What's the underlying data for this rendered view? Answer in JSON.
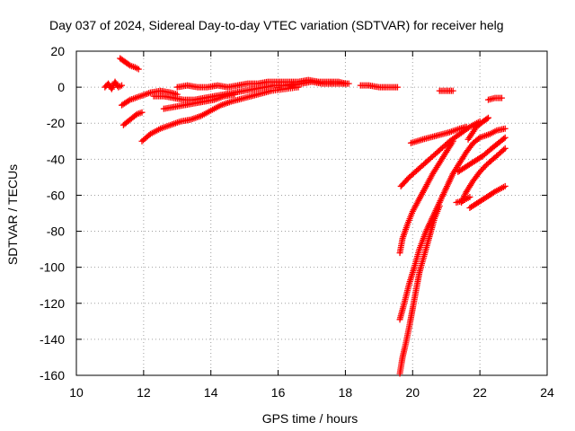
{
  "chart_data": {
    "type": "scatter",
    "title": "Day 037 of 2024, Sidereal Day-to-day VTEC variation (SDTVAR) for receiver helg",
    "xlabel": "GPS time / hours",
    "ylabel": "SDTVAR / TECUs",
    "xlim": [
      10,
      24
    ],
    "ylim": [
      -160,
      20
    ],
    "xticks": [
      10,
      12,
      14,
      16,
      18,
      20,
      22,
      24
    ],
    "yticks": [
      20,
      0,
      -20,
      -40,
      -60,
      -80,
      -100,
      -120,
      -140,
      -160
    ],
    "grid": true,
    "marker": "+",
    "color": "#ff0000",
    "series": [
      {
        "points": [
          [
            10.85,
            0
          ],
          [
            10.95,
            2
          ],
          [
            11.05,
            -1
          ],
          [
            11.15,
            3
          ],
          [
            11.25,
            0
          ],
          [
            11.35,
            1
          ]
        ]
      },
      {
        "points": [
          [
            11.3,
            16
          ],
          [
            11.45,
            14
          ],
          [
            11.6,
            12
          ],
          [
            11.75,
            11
          ],
          [
            11.85,
            10
          ]
        ]
      },
      {
        "points": [
          [
            11.35,
            -10
          ],
          [
            11.6,
            -7
          ],
          [
            11.9,
            -5
          ],
          [
            12.2,
            -3
          ],
          [
            12.5,
            -2
          ],
          [
            12.8,
            -3
          ],
          [
            13.0,
            -4
          ]
        ]
      },
      {
        "points": [
          [
            11.4,
            -21
          ],
          [
            11.6,
            -18
          ],
          [
            11.8,
            -15
          ],
          [
            11.95,
            -14
          ]
        ]
      },
      {
        "points": [
          [
            11.95,
            -30
          ],
          [
            12.2,
            -26
          ],
          [
            12.5,
            -23
          ],
          [
            12.8,
            -21
          ],
          [
            13.1,
            -19
          ],
          [
            13.4,
            -18
          ],
          [
            13.7,
            -16
          ],
          [
            14.0,
            -13
          ],
          [
            14.3,
            -10
          ],
          [
            14.6,
            -8
          ],
          [
            15.0,
            -6
          ],
          [
            15.4,
            -4
          ],
          [
            15.8,
            -2
          ],
          [
            16.2,
            -1
          ],
          [
            16.6,
            0
          ]
        ]
      },
      {
        "points": [
          [
            12.3,
            -5
          ],
          [
            12.6,
            -5
          ],
          [
            12.9,
            -6
          ],
          [
            13.2,
            -7
          ],
          [
            13.5,
            -7
          ],
          [
            13.8,
            -6
          ],
          [
            14.1,
            -5
          ],
          [
            14.4,
            -4
          ],
          [
            14.7,
            -3
          ],
          [
            15.0,
            -2
          ],
          [
            15.3,
            -1
          ],
          [
            15.6,
            0
          ],
          [
            15.9,
            1
          ],
          [
            16.2,
            1
          ],
          [
            16.5,
            2
          ]
        ]
      },
      {
        "points": [
          [
            12.6,
            -12
          ],
          [
            12.9,
            -11
          ],
          [
            13.2,
            -10
          ],
          [
            13.5,
            -9
          ],
          [
            13.8,
            -8
          ],
          [
            14.1,
            -7
          ],
          [
            14.4,
            -5
          ],
          [
            14.7,
            -4
          ]
        ]
      },
      {
        "points": [
          [
            13.0,
            0
          ],
          [
            13.3,
            1
          ],
          [
            13.6,
            0
          ],
          [
            13.9,
            0
          ],
          [
            14.2,
            1
          ],
          [
            14.5,
            0
          ],
          [
            14.8,
            1
          ],
          [
            15.1,
            2
          ],
          [
            15.4,
            2
          ],
          [
            15.7,
            3
          ],
          [
            16.0,
            3
          ],
          [
            16.3,
            3
          ],
          [
            16.6,
            3
          ],
          [
            16.9,
            4
          ],
          [
            17.2,
            3
          ],
          [
            17.5,
            3
          ],
          [
            17.8,
            3
          ],
          [
            18.0,
            2
          ]
        ]
      },
      {
        "points": [
          [
            16.4,
            1
          ],
          [
            16.7,
            2
          ],
          [
            17.0,
            3
          ],
          [
            17.3,
            2
          ],
          [
            17.6,
            2
          ],
          [
            17.9,
            2
          ],
          [
            18.1,
            2
          ]
        ]
      },
      {
        "points": [
          [
            18.45,
            1
          ],
          [
            18.7,
            1
          ],
          [
            19.0,
            0
          ],
          [
            19.3,
            0
          ],
          [
            19.55,
            0
          ]
        ]
      },
      {
        "points": [
          [
            20.8,
            -2
          ],
          [
            21.0,
            -2
          ],
          [
            21.2,
            -2
          ]
        ]
      },
      {
        "points": [
          [
            22.25,
            -7
          ],
          [
            22.45,
            -6
          ],
          [
            22.65,
            -6
          ]
        ]
      },
      {
        "points": [
          [
            19.65,
            -55
          ],
          [
            19.9,
            -50
          ],
          [
            20.2,
            -45
          ],
          [
            20.5,
            -40
          ],
          [
            20.8,
            -35
          ],
          [
            21.1,
            -30
          ],
          [
            21.4,
            -26
          ],
          [
            21.7,
            -22
          ],
          [
            22.0,
            -19
          ]
        ]
      },
      {
        "points": [
          [
            19.95,
            -31
          ],
          [
            20.3,
            -29
          ],
          [
            20.7,
            -27
          ],
          [
            21.1,
            -25
          ],
          [
            21.4,
            -23
          ],
          [
            21.6,
            -22
          ]
        ]
      },
      {
        "points": [
          [
            19.62,
            -92
          ],
          [
            19.7,
            -84
          ],
          [
            19.85,
            -76
          ],
          [
            20.0,
            -69
          ],
          [
            20.2,
            -62
          ],
          [
            20.4,
            -55
          ],
          [
            20.6,
            -48
          ],
          [
            20.8,
            -42
          ],
          [
            21.0,
            -36
          ],
          [
            21.2,
            -30
          ]
        ]
      },
      {
        "points": [
          [
            19.62,
            -129
          ],
          [
            19.75,
            -120
          ],
          [
            19.9,
            -109
          ],
          [
            20.05,
            -100
          ],
          [
            20.2,
            -90
          ],
          [
            20.4,
            -80
          ],
          [
            20.6,
            -72
          ],
          [
            20.8,
            -64
          ],
          [
            21.0,
            -56
          ],
          [
            21.2,
            -48
          ],
          [
            21.4,
            -42
          ],
          [
            21.6,
            -36
          ],
          [
            21.8,
            -31
          ],
          [
            22.0,
            -28
          ],
          [
            22.3,
            -26
          ],
          [
            22.5,
            -24
          ],
          [
            22.75,
            -23
          ]
        ]
      },
      {
        "points": [
          [
            19.62,
            -159
          ],
          [
            19.7,
            -150
          ],
          [
            19.8,
            -142
          ],
          [
            19.9,
            -133
          ],
          [
            20.0,
            -123
          ],
          [
            20.1,
            -113
          ],
          [
            20.2,
            -103
          ],
          [
            20.35,
            -93
          ],
          [
            20.5,
            -83
          ],
          [
            20.65,
            -73
          ],
          [
            20.8,
            -66
          ]
        ]
      },
      {
        "points": [
          [
            21.35,
            -47
          ],
          [
            21.6,
            -44
          ],
          [
            21.85,
            -41
          ],
          [
            22.1,
            -38
          ],
          [
            22.35,
            -34
          ],
          [
            22.55,
            -31
          ],
          [
            22.75,
            -28
          ]
        ]
      },
      {
        "points": [
          [
            21.65,
            -29
          ],
          [
            21.9,
            -22
          ],
          [
            22.1,
            -19
          ],
          [
            22.25,
            -17
          ]
        ]
      },
      {
        "points": [
          [
            21.3,
            -64
          ],
          [
            21.5,
            -63
          ],
          [
            21.7,
            -61
          ]
        ]
      },
      {
        "points": [
          [
            21.7,
            -67
          ],
          [
            21.95,
            -64
          ],
          [
            22.2,
            -61
          ],
          [
            22.45,
            -58
          ],
          [
            22.75,
            -55
          ]
        ]
      },
      {
        "points": [
          [
            21.45,
            -64
          ],
          [
            21.6,
            -58
          ],
          [
            21.8,
            -52
          ],
          [
            22.0,
            -47
          ],
          [
            22.2,
            -43
          ],
          [
            22.45,
            -39
          ],
          [
            22.75,
            -34
          ]
        ]
      }
    ]
  }
}
